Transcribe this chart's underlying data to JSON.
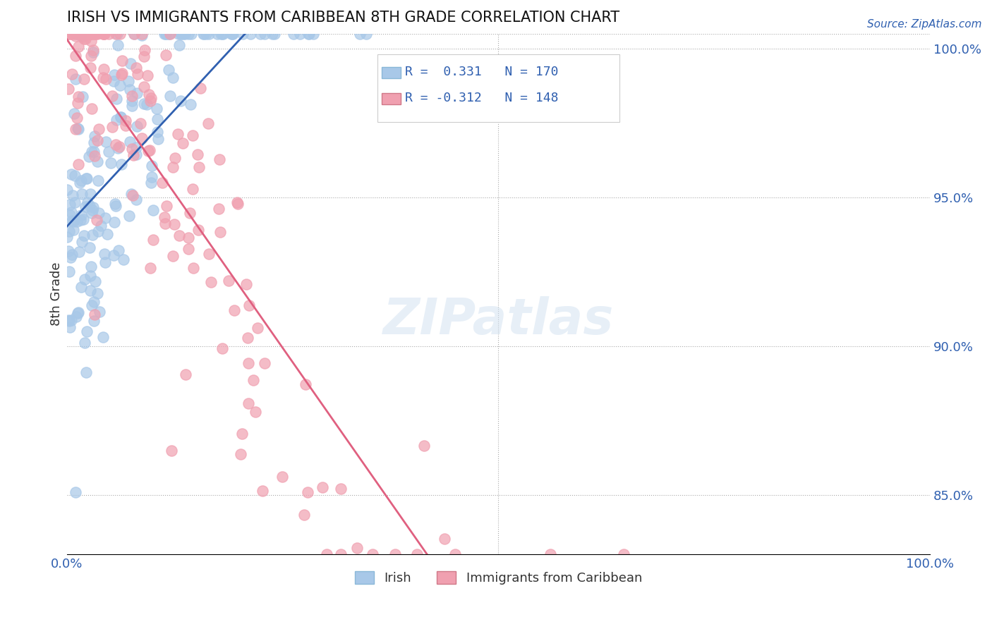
{
  "title": "IRISH VS IMMIGRANTS FROM CARIBBEAN 8TH GRADE CORRELATION CHART",
  "source_text": "Source: ZipAtlas.com",
  "xlabel": "",
  "ylabel": "8th Grade",
  "x_min": 0.0,
  "x_max": 1.0,
  "y_min": 0.83,
  "y_max": 1.005,
  "y_ticks": [
    0.85,
    0.9,
    0.95,
    1.0
  ],
  "y_tick_labels": [
    "85.0%",
    "90.0%",
    "95.0%",
    "100.0%"
  ],
  "x_ticks": [
    0.0,
    1.0
  ],
  "x_tick_labels": [
    "0.0%",
    "100.0%"
  ],
  "irish_R": 0.331,
  "irish_N": 170,
  "carib_R": -0.312,
  "carib_N": 148,
  "irish_color": "#a8c8e8",
  "irish_line_color": "#3060b0",
  "carib_color": "#f0a0b0",
  "carib_line_color": "#e06080",
  "legend_label_irish": "Irish",
  "legend_label_carib": "Immigrants from Caribbean",
  "watermark": "ZIPatlas",
  "irish_seed": 42,
  "carib_seed": 99
}
